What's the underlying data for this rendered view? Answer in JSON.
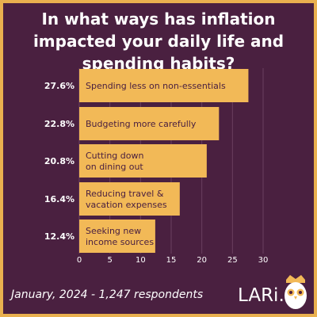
{
  "title": "In what ways has inflation impacted your daily life and spending habits?",
  "footer": "January, 2024 - 1,247 respondents",
  "brand": "LARi.ca",
  "colors": {
    "background": "#4a2040",
    "bar": "#f2b957",
    "bar_text": "#4a2040",
    "text": "#ffffff",
    "grid": "#6a4060",
    "border": "#e9b04f"
  },
  "icons": {
    "logo": "owl-icon"
  },
  "chart_data": {
    "type": "bar",
    "orientation": "horizontal",
    "categories": [
      "Spending less on non-essentials",
      "Budgeting more carefully",
      "Cutting down\non dining out",
      "Reducing travel &\nvacation expenses",
      "Seeking new\nincome sources"
    ],
    "values": [
      27.6,
      22.8,
      20.8,
      16.4,
      12.4
    ],
    "value_labels": [
      "27.6%",
      "22.8%",
      "20.8%",
      "16.4%",
      "12.4%"
    ],
    "xlim": [
      0,
      30
    ],
    "xticks": [
      0,
      5,
      10,
      15,
      20,
      25,
      30
    ],
    "grid": true
  }
}
